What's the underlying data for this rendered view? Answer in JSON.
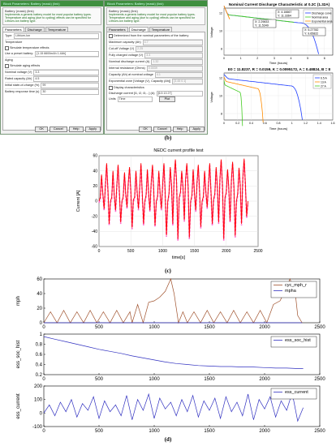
{
  "dialog1": {
    "title": "Block Parameters: Battery (mask) (link)",
    "header": "Battery (mask) (link)",
    "description": "Implements a generic battery model for most popular battery types. Temperature and aging (due to cycling) effects can be specified for Lithium-Ion battery type.",
    "tabs": [
      "Parameters",
      "Discharge",
      "Temperature"
    ],
    "type_label": "Type:",
    "type_value": "Lithium-Ion",
    "temperature_label": "Temperature",
    "simulate_temp_label": "Simulate temperature effects",
    "preset_label": "Use a preset battery:",
    "preset_value": "[1.15 6600mAh 1.4Ah]",
    "aging_label": "Aging",
    "simulate_aging_label": "Simulate aging effects",
    "nominal_voltage_label": "Nominal voltage (V)",
    "nominal_voltage_value": "3.3",
    "rated_capacity_label": "Rated capacity (Ah)",
    "rated_capacity_value": "4.5",
    "initial_soc_label": "Initial state-of-charge (%)",
    "initial_soc_value": "99",
    "response_time_label": "Battery response time (s)",
    "response_time_value": "30",
    "buttons": [
      "OK",
      "Cancel",
      "Help",
      "Apply"
    ]
  },
  "dialog2": {
    "title": "Block Parameters: Battery (mask) (link)",
    "header": "Battery (mask) (link)",
    "description": "Implements a generic battery model for most popular battery types. Temperature and aging (due to cycling) effects can be specified for Lithium-Ion battery type.",
    "tabs": [
      "Parameters",
      "Discharge",
      "Temperature"
    ],
    "determined_label": "Determined from the nominal parameters of the battery",
    "rows": [
      {
        "label": "Maximum capacity (Ah)",
        "value": "4.7"
      },
      {
        "label": "Cut-off Voltage (V)",
        "value": "2.25"
      },
      {
        "label": "Fully charged voltage (V)",
        "value": "3.3"
      },
      {
        "label": "Nominal discharge current (A)",
        "value": "1.32"
      },
      {
        "label": "Internal resistance (Ohms)",
        "value": "0.0039"
      },
      {
        "label": "Capacity (Ah) at nominal voltage",
        "value": "4.1"
      },
      {
        "label": "Exponential zone [Voltage (V), Capacity (Ah)]",
        "value": "[3.45 0.1]"
      }
    ],
    "display_label": "Display characteristics",
    "discharge_label": "Discharge current [i1, i2, i3,...] (A)",
    "discharge_value": "[6.5 13 27]",
    "units_label": "Units",
    "units_value": "Time",
    "plot_label": "Plot",
    "buttons": [
      "OK",
      "Cancel",
      "Help",
      "Apply"
    ]
  },
  "fig_b_top": {
    "title": "Nominal Current Discharge Characteristic at 0.2C (1.32A)",
    "ylabel": "Voltage",
    "xlabel": "Time (hours)",
    "legend": [
      "Discharge curve",
      "Nominal area",
      "Exponential area"
    ],
    "tips": [
      {
        "x": "X: 4.16667",
        "y": "Y: 11.3364"
      },
      {
        "x": "X: 2.29833",
        "y": "Y: 11.5349"
      },
      {
        "x": "X: 5.27782",
        "y": "Y: 9.65822"
      }
    ],
    "xticks": [
      "0",
      "1",
      "2",
      "3",
      "4",
      "5",
      "6"
    ],
    "yticks": [
      "8",
      "10",
      "12"
    ]
  },
  "fig_b_bottom": {
    "title": "E0 = 11.8237, R = 0.0159, K = 0.0095172, A = 0.48824, B = 8",
    "ylabel": "Voltage",
    "xlabel": "Time (hours)",
    "legend": [
      "6.5 A",
      "13 A",
      "27 A"
    ],
    "xticks": [
      "0",
      "0.2",
      "0.4",
      "0.6",
      "0.8",
      "1",
      "1.2",
      "1.4",
      "1.6"
    ],
    "yticks": [
      "8",
      "10",
      "12"
    ]
  },
  "caption_b": "(b)",
  "caption_c": "(c)",
  "caption_d": "(d)",
  "colors": {
    "dialog_green": "#3f8f3f",
    "nedc_red": "#ff0000",
    "nedc_pink": "#ff66cc",
    "mph_line": "#a0522d",
    "blue_line": "#3030c0",
    "discharge_1": "#1d3cff",
    "discharge_2": "#44cc22",
    "discharge_3": "#ff8c00"
  },
  "chart_data": [
    {
      "type": "line",
      "title": "NEDC current profile test",
      "xlabel": "time[s]",
      "ylabel": "Current [A]",
      "xlim": [
        0,
        2500
      ],
      "ylim": [
        -60,
        60
      ],
      "xticks": [
        "0",
        "500",
        "1000",
        "1500",
        "2000",
        "2500"
      ],
      "yticks": [
        "60",
        "40",
        "20",
        "0",
        "-20",
        "-40",
        "-60"
      ],
      "grid": true,
      "series": [
        {
          "values_note": "current",
          "x": [
            0,
            20,
            40,
            60,
            80,
            100,
            120,
            140,
            160,
            180,
            200,
            220,
            240,
            260,
            280,
            300,
            320,
            340,
            360,
            380,
            400,
            420,
            440,
            460,
            480,
            500,
            520,
            540,
            560,
            580,
            600,
            620,
            640,
            660,
            680,
            700,
            720,
            740,
            760,
            780,
            800,
            820,
            840,
            860,
            880,
            900,
            920,
            940,
            960,
            980,
            1000,
            1020,
            1040,
            1060,
            1080,
            1100,
            1120,
            1140,
            1160,
            1180,
            1200,
            1220,
            1240,
            1260,
            1280,
            1300,
            1320,
            1340,
            1360,
            1380,
            1400,
            1420,
            1440,
            1460,
            1480,
            1500,
            1520,
            1540,
            1560,
            1580,
            1600,
            1620,
            1640,
            1660,
            1680,
            1700,
            1720,
            1740,
            1760,
            1780,
            1800,
            1820,
            1840,
            1860,
            1880,
            1900,
            1920,
            1940,
            1960,
            1980,
            2000,
            2020,
            2040,
            2060,
            2080,
            2100,
            2120,
            2140,
            2160,
            2180,
            2200,
            2220,
            2240,
            2260,
            2280,
            2300,
            2320,
            2340
          ],
          "y": [
            0,
            5,
            35,
            10,
            -10,
            20,
            50,
            15,
            -30,
            0,
            5,
            40,
            8,
            -12,
            22,
            48,
            12,
            -28,
            0,
            6,
            38,
            10,
            -8,
            25,
            45,
            14,
            -35,
            2,
            5,
            40,
            12,
            -10,
            20,
            50,
            10,
            -30,
            0,
            8,
            42,
            10,
            -12,
            25,
            48,
            15,
            -32,
            0,
            6,
            40,
            10,
            -10,
            22,
            50,
            12,
            -45,
            0,
            10,
            45,
            20,
            -30,
            30,
            55,
            25,
            -50,
            5,
            12,
            40,
            18,
            -25,
            28,
            50,
            20,
            -48,
            0,
            8,
            42,
            10,
            -12,
            24,
            48,
            14,
            -34,
            0,
            6,
            40,
            12,
            -8,
            22,
            50,
            12,
            -30,
            2,
            10,
            45,
            20,
            -28,
            30,
            55,
            22,
            -50,
            5,
            12,
            42,
            18,
            -26,
            28,
            52,
            20,
            -46,
            0,
            10,
            44,
            22,
            -30,
            32,
            56,
            24,
            -20,
            0
          ]
        }
      ]
    },
    {
      "type": "line",
      "xlabel": "",
      "ylabel": "mph",
      "xlim": [
        0,
        2500
      ],
      "ylim": [
        0,
        60
      ],
      "yticks": [
        "0",
        "20",
        "40",
        "60"
      ],
      "xticks": [
        "0",
        "500",
        "1000",
        "1500",
        "2000",
        "2500"
      ],
      "series": [
        {
          "name": "cyc_mph_r",
          "x": [
            0,
            60,
            120,
            180,
            240,
            300,
            360,
            420,
            480,
            540,
            600,
            660,
            720,
            780,
            800,
            850,
            900,
            950,
            1000,
            1050,
            1100,
            1150,
            1180,
            1220,
            1260,
            1300,
            1360,
            1420,
            1480,
            1540,
            1600,
            1660,
            1720,
            1780,
            1840,
            1900,
            1960,
            2020,
            2080,
            2140,
            2180,
            2230,
            2280,
            2300,
            2340
          ],
          "y": [
            0,
            15,
            0,
            17,
            0,
            15,
            0,
            17,
            0,
            15,
            0,
            17,
            0,
            15,
            0,
            25,
            0,
            28,
            30,
            35,
            43,
            60,
            40,
            0,
            15,
            0,
            15,
            0,
            17,
            0,
            15,
            0,
            17,
            0,
            15,
            0,
            17,
            0,
            25,
            30,
            42,
            60,
            38,
            10,
            0
          ]
        },
        {
          "name": "mpha",
          "x": [
            0,
            2340
          ],
          "y": [
            0,
            0
          ]
        }
      ]
    },
    {
      "type": "line",
      "ylabel": "ess_soc_hist",
      "xlim": [
        0,
        2500
      ],
      "ylim": [
        0.2,
        1.0
      ],
      "yticks": [
        "0.2",
        "0.4",
        "0.6",
        "0.8",
        "1"
      ],
      "xticks": [
        "0",
        "500",
        "1000",
        "1500",
        "2000",
        "2500"
      ],
      "series": [
        {
          "name": "ess_soc_hist",
          "x": [
            0,
            100,
            200,
            300,
            400,
            500,
            600,
            700,
            800,
            900,
            1000,
            1100,
            1200,
            1300,
            1400,
            1500,
            1600,
            1700,
            1800,
            1900,
            2000,
            2100,
            2200,
            2300,
            2350
          ],
          "y": [
            0.95,
            0.9,
            0.85,
            0.8,
            0.75,
            0.7,
            0.66,
            0.62,
            0.57,
            0.53,
            0.49,
            0.45,
            0.42,
            0.4,
            0.38,
            0.37,
            0.36,
            0.36,
            0.35,
            0.35,
            0.34,
            0.33,
            0.33,
            0.32,
            0.32
          ]
        }
      ]
    },
    {
      "type": "line",
      "ylabel": "ess_current",
      "xlabel": "",
      "xlim": [
        0,
        2500
      ],
      "ylim": [
        -100,
        200
      ],
      "yticks": [
        "-100",
        "0",
        "100",
        "200"
      ],
      "xticks": [
        "0",
        "500",
        "1000",
        "1500",
        "2000",
        "2500"
      ],
      "series": [
        {
          "name": "ess_current",
          "x": [
            0,
            50,
            100,
            150,
            200,
            250,
            300,
            350,
            400,
            450,
            500,
            550,
            600,
            650,
            700,
            750,
            800,
            850,
            900,
            950,
            1000,
            1050,
            1100,
            1150,
            1200,
            1250,
            1300,
            1350,
            1400,
            1450,
            1500,
            1550,
            1600,
            1650,
            1700,
            1750,
            1800,
            1850,
            1900,
            1950,
            2000,
            2050,
            2100,
            2150,
            2200,
            2250,
            2300,
            2350
          ],
          "y": [
            0,
            60,
            -20,
            80,
            10,
            100,
            -30,
            70,
            20,
            120,
            -40,
            90,
            10,
            60,
            -20,
            130,
            -50,
            100,
            20,
            140,
            -40,
            110,
            30,
            80,
            -20,
            100,
            10,
            130,
            -30,
            90,
            20,
            110,
            -40,
            120,
            10,
            80,
            -20,
            140,
            -50,
            100,
            30,
            120,
            -30,
            90,
            20,
            150,
            -60,
            40
          ]
        }
      ]
    }
  ]
}
